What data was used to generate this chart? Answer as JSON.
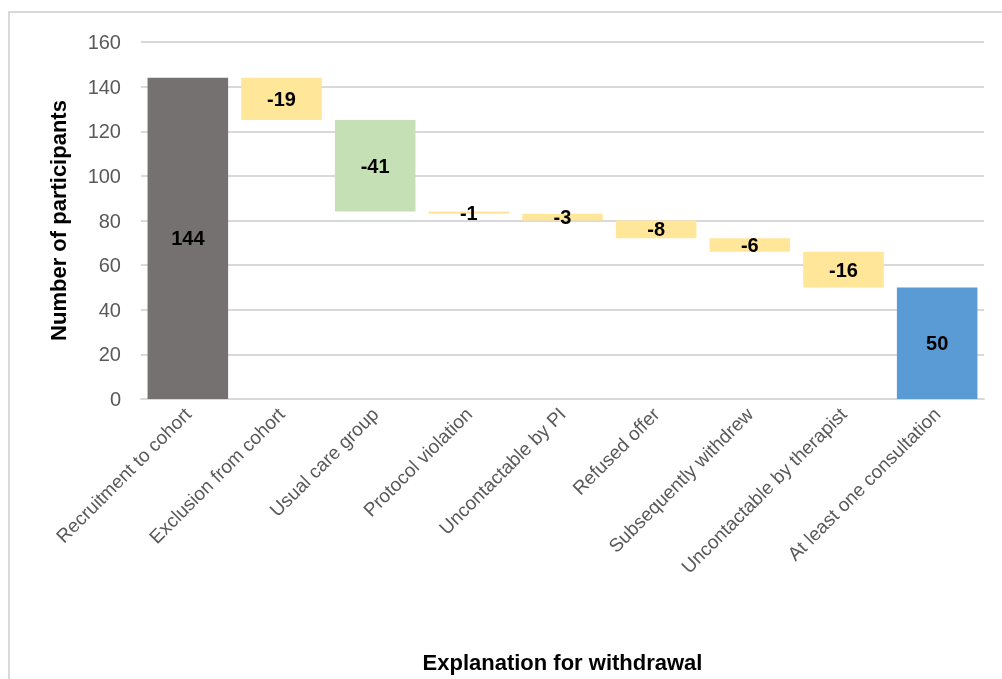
{
  "chart_data": {
    "type": "bar",
    "xlabel": "Explanation for withdrawal",
    "ylabel": "Number of participants",
    "categories": [
      "Recruitment to cohort",
      "Exclusion from cohort",
      "Usual care group",
      "Protocol violation",
      "Uncontactable by PI",
      "Refused offer",
      "Subsequently withdrew",
      "Uncontactable by therapist",
      "At least one consultation"
    ],
    "values": [
      144,
      -19,
      -41,
      -1,
      -3,
      -8,
      -6,
      -16,
      50
    ],
    "base": [
      0,
      144,
      125,
      84,
      83,
      80,
      72,
      66,
      0
    ],
    "colors": [
      "#767171",
      "#ffe699",
      "#c5e0b4",
      "#ffe699",
      "#ffe699",
      "#ffe699",
      "#ffe699",
      "#ffe699",
      "#5b9bd5"
    ],
    "ylim": [
      0,
      160
    ],
    "yticks": [
      0,
      20,
      40,
      60,
      80,
      100,
      120,
      140,
      160
    ],
    "grid": "y",
    "data_labels": true
  }
}
